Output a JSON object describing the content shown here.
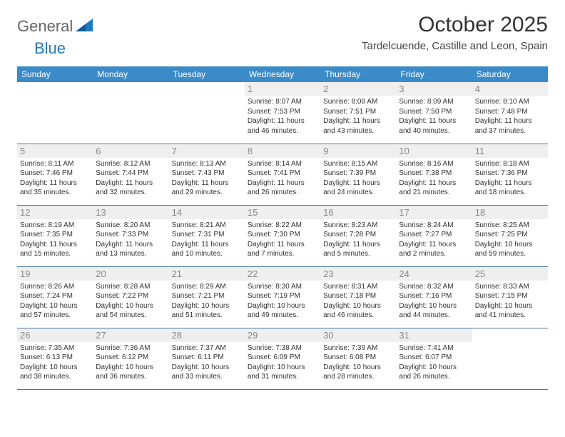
{
  "brand": {
    "part1": "General",
    "part2": "Blue"
  },
  "title": "October 2025",
  "location": "Tardelcuende, Castille and Leon, Spain",
  "colors": {
    "header_bg": "#3b8bc9",
    "header_text": "#ffffff",
    "row_divider": "#4a78a5",
    "daynum_bg": "#efefef",
    "daynum_text": "#888888",
    "body_text": "#333333",
    "logo_gray": "#666666",
    "logo_blue": "#1f7ac2",
    "background": "#ffffff"
  },
  "typography": {
    "title_fontsize": 30,
    "location_fontsize": 15,
    "header_fontsize": 12,
    "daynum_fontsize": 13,
    "cell_fontsize": 10
  },
  "weekday_labels": [
    "Sunday",
    "Monday",
    "Tuesday",
    "Wednesday",
    "Thursday",
    "Friday",
    "Saturday"
  ],
  "grid": [
    [
      null,
      null,
      null,
      {
        "n": "1",
        "sunrise": "8:07 AM",
        "sunset": "7:53 PM",
        "daylight": "11 hours and 46 minutes."
      },
      {
        "n": "2",
        "sunrise": "8:08 AM",
        "sunset": "7:51 PM",
        "daylight": "11 hours and 43 minutes."
      },
      {
        "n": "3",
        "sunrise": "8:09 AM",
        "sunset": "7:50 PM",
        "daylight": "11 hours and 40 minutes."
      },
      {
        "n": "4",
        "sunrise": "8:10 AM",
        "sunset": "7:48 PM",
        "daylight": "11 hours and 37 minutes."
      }
    ],
    [
      {
        "n": "5",
        "sunrise": "8:11 AM",
        "sunset": "7:46 PM",
        "daylight": "11 hours and 35 minutes."
      },
      {
        "n": "6",
        "sunrise": "8:12 AM",
        "sunset": "7:44 PM",
        "daylight": "11 hours and 32 minutes."
      },
      {
        "n": "7",
        "sunrise": "8:13 AM",
        "sunset": "7:43 PM",
        "daylight": "11 hours and 29 minutes."
      },
      {
        "n": "8",
        "sunrise": "8:14 AM",
        "sunset": "7:41 PM",
        "daylight": "11 hours and 26 minutes."
      },
      {
        "n": "9",
        "sunrise": "8:15 AM",
        "sunset": "7:39 PM",
        "daylight": "11 hours and 24 minutes."
      },
      {
        "n": "10",
        "sunrise": "8:16 AM",
        "sunset": "7:38 PM",
        "daylight": "11 hours and 21 minutes."
      },
      {
        "n": "11",
        "sunrise": "8:18 AM",
        "sunset": "7:36 PM",
        "daylight": "11 hours and 18 minutes."
      }
    ],
    [
      {
        "n": "12",
        "sunrise": "8:19 AM",
        "sunset": "7:35 PM",
        "daylight": "11 hours and 15 minutes."
      },
      {
        "n": "13",
        "sunrise": "8:20 AM",
        "sunset": "7:33 PM",
        "daylight": "11 hours and 13 minutes."
      },
      {
        "n": "14",
        "sunrise": "8:21 AM",
        "sunset": "7:31 PM",
        "daylight": "11 hours and 10 minutes."
      },
      {
        "n": "15",
        "sunrise": "8:22 AM",
        "sunset": "7:30 PM",
        "daylight": "11 hours and 7 minutes."
      },
      {
        "n": "16",
        "sunrise": "8:23 AM",
        "sunset": "7:28 PM",
        "daylight": "11 hours and 5 minutes."
      },
      {
        "n": "17",
        "sunrise": "8:24 AM",
        "sunset": "7:27 PM",
        "daylight": "11 hours and 2 minutes."
      },
      {
        "n": "18",
        "sunrise": "8:25 AM",
        "sunset": "7:25 PM",
        "daylight": "10 hours and 59 minutes."
      }
    ],
    [
      {
        "n": "19",
        "sunrise": "8:26 AM",
        "sunset": "7:24 PM",
        "daylight": "10 hours and 57 minutes."
      },
      {
        "n": "20",
        "sunrise": "8:28 AM",
        "sunset": "7:22 PM",
        "daylight": "10 hours and 54 minutes."
      },
      {
        "n": "21",
        "sunrise": "8:29 AM",
        "sunset": "7:21 PM",
        "daylight": "10 hours and 51 minutes."
      },
      {
        "n": "22",
        "sunrise": "8:30 AM",
        "sunset": "7:19 PM",
        "daylight": "10 hours and 49 minutes."
      },
      {
        "n": "23",
        "sunrise": "8:31 AM",
        "sunset": "7:18 PM",
        "daylight": "10 hours and 46 minutes."
      },
      {
        "n": "24",
        "sunrise": "8:32 AM",
        "sunset": "7:16 PM",
        "daylight": "10 hours and 44 minutes."
      },
      {
        "n": "25",
        "sunrise": "8:33 AM",
        "sunset": "7:15 PM",
        "daylight": "10 hours and 41 minutes."
      }
    ],
    [
      {
        "n": "26",
        "sunrise": "7:35 AM",
        "sunset": "6:13 PM",
        "daylight": "10 hours and 38 minutes."
      },
      {
        "n": "27",
        "sunrise": "7:36 AM",
        "sunset": "6:12 PM",
        "daylight": "10 hours and 36 minutes."
      },
      {
        "n": "28",
        "sunrise": "7:37 AM",
        "sunset": "6:11 PM",
        "daylight": "10 hours and 33 minutes."
      },
      {
        "n": "29",
        "sunrise": "7:38 AM",
        "sunset": "6:09 PM",
        "daylight": "10 hours and 31 minutes."
      },
      {
        "n": "30",
        "sunrise": "7:39 AM",
        "sunset": "6:08 PM",
        "daylight": "10 hours and 28 minutes."
      },
      {
        "n": "31",
        "sunrise": "7:41 AM",
        "sunset": "6:07 PM",
        "daylight": "10 hours and 26 minutes."
      },
      null
    ]
  ],
  "labels": {
    "sunrise": "Sunrise:",
    "sunset": "Sunset:",
    "daylight": "Daylight:"
  }
}
